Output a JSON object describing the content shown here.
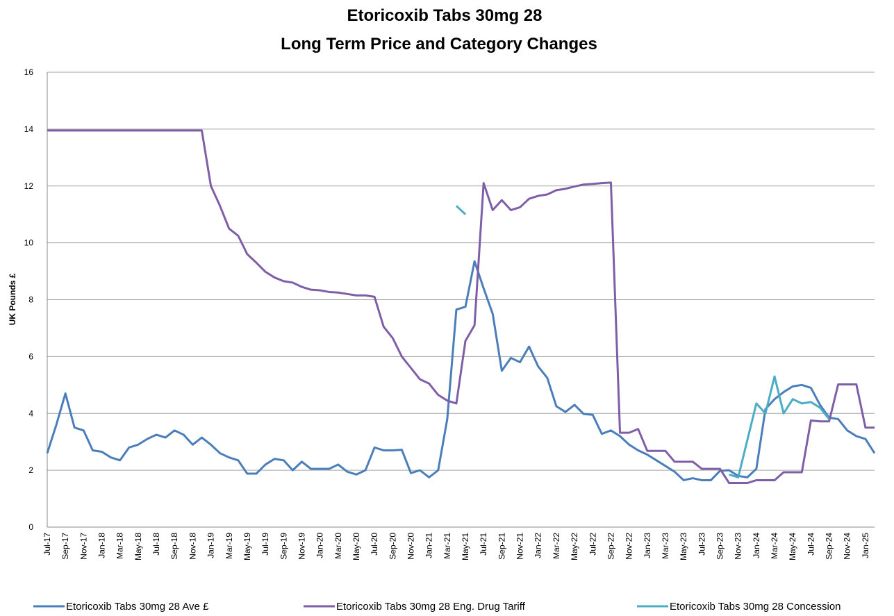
{
  "chart_data": {
    "type": "line",
    "title": "Etoricoxib Tabs 30mg 28",
    "subtitle": "Long Term Price and Category Changes",
    "y_label": "UK Pounds £",
    "categories": [
      "Jul-17",
      null,
      "Sep-17",
      null,
      "Nov-17",
      null,
      "Jan-18",
      null,
      "Mar-18",
      null,
      "May-18",
      null,
      "Jul-18",
      null,
      "Sep-18",
      null,
      "Nov-18",
      null,
      "Jan-19",
      null,
      "Mar-19",
      null,
      "May-19",
      null,
      "Jul-19",
      null,
      "Sep-19",
      null,
      "Nov-19",
      null,
      "Jan-20",
      null,
      "Mar-20",
      null,
      "May-20",
      null,
      "Jul-20",
      null,
      "Sep-20",
      null,
      "Nov-20",
      null,
      "Jan-21",
      null,
      "Mar-21",
      null,
      "May-21",
      null,
      "Jul-21",
      null,
      "Sep-21",
      null,
      "Nov-21",
      null,
      "Jan-22",
      null,
      "Mar-22",
      null,
      "May-22",
      null,
      "Jul-22",
      null,
      "Sep-22",
      null,
      "Nov-22",
      null,
      "Jan-23",
      null,
      "Mar-23",
      null,
      "May-23",
      null,
      "Jul-23",
      null,
      "Sep-23",
      null,
      "Nov-23",
      null,
      "Jan-24",
      null,
      "Mar-24",
      null,
      "May-24",
      null,
      "Jul-24",
      null,
      "Sep-24",
      null,
      "Nov-24",
      null,
      "Jan-25",
      null
    ],
    "series": [
      {
        "name": "Etoricoxib Tabs 30mg 28 Ave £",
        "color": "#4a7ebb",
        "values": [
          2.6,
          3.6,
          4.7,
          3.5,
          3.4,
          2.7,
          2.65,
          2.45,
          2.35,
          2.8,
          2.9,
          3.1,
          3.25,
          3.15,
          3.4,
          3.25,
          2.9,
          3.15,
          2.9,
          2.6,
          2.45,
          2.35,
          1.88,
          1.88,
          2.2,
          2.4,
          2.35,
          2.0,
          2.3,
          2.05,
          2.05,
          2.05,
          2.2,
          1.95,
          1.85,
          2.0,
          2.8,
          2.7,
          2.7,
          2.72,
          1.9,
          2.0,
          1.75,
          2.0,
          3.8,
          7.65,
          7.75,
          9.35,
          8.4,
          7.5,
          5.5,
          5.95,
          5.8,
          6.35,
          5.65,
          5.25,
          4.25,
          4.05,
          4.3,
          3.98,
          3.95,
          3.28,
          3.4,
          3.2,
          2.9,
          2.7,
          2.55,
          2.35,
          2.15,
          1.95,
          1.65,
          1.72,
          1.65,
          1.65,
          1.98,
          2.0,
          1.8,
          1.75,
          2.05,
          4.15,
          4.5,
          4.75,
          4.95,
          5.0,
          4.9,
          4.3,
          3.85,
          3.8,
          3.4,
          3.2,
          3.1,
          2.6
        ]
      },
      {
        "name": "Etoricoxib Tabs 30mg 28 Eng. Drug Tariff",
        "color": "#7f5ea8",
        "values": [
          13.95,
          13.95,
          13.95,
          13.95,
          13.95,
          13.95,
          13.95,
          13.95,
          13.95,
          13.95,
          13.95,
          13.95,
          13.95,
          13.95,
          13.95,
          13.95,
          13.95,
          13.95,
          12.0,
          11.3,
          10.5,
          10.25,
          9.6,
          9.3,
          8.98,
          8.78,
          8.65,
          8.6,
          8.45,
          8.35,
          8.33,
          8.27,
          8.25,
          8.2,
          8.15,
          8.15,
          8.1,
          7.05,
          6.65,
          6.0,
          5.6,
          5.2,
          5.05,
          4.65,
          4.45,
          4.35,
          6.55,
          7.1,
          12.1,
          11.15,
          11.5,
          11.15,
          11.25,
          11.55,
          11.65,
          11.7,
          11.85,
          11.9,
          11.98,
          12.05,
          12.07,
          12.1,
          12.12,
          3.32,
          3.32,
          3.45,
          2.68,
          2.68,
          2.68,
          2.3,
          2.3,
          2.3,
          2.05,
          2.05,
          2.05,
          1.55,
          1.55,
          1.55,
          1.65,
          1.65,
          1.65,
          1.93,
          1.93,
          1.93,
          3.75,
          3.72,
          3.72,
          5.02,
          5.02,
          5.02,
          3.5,
          3.5
        ]
      },
      {
        "name": "Etoricoxib Tabs 30mg 28 Concession",
        "color": "#4bacc6",
        "values": [
          null,
          null,
          null,
          null,
          null,
          null,
          null,
          null,
          null,
          null,
          null,
          null,
          null,
          null,
          null,
          null,
          null,
          null,
          null,
          null,
          null,
          null,
          null,
          null,
          null,
          null,
          null,
          null,
          null,
          null,
          null,
          null,
          null,
          null,
          null,
          null,
          null,
          null,
          null,
          null,
          null,
          null,
          null,
          null,
          null,
          11.3,
          11.0,
          null,
          null,
          null,
          null,
          null,
          null,
          null,
          null,
          null,
          null,
          null,
          null,
          null,
          null,
          null,
          null,
          null,
          null,
          null,
          null,
          null,
          null,
          null,
          null,
          null,
          null,
          null,
          null,
          1.85,
          1.75,
          3.05,
          4.35,
          4.0,
          5.3,
          4.0,
          4.5,
          4.35,
          4.4,
          4.2,
          3.8,
          null,
          null,
          null,
          null,
          null
        ]
      }
    ],
    "ylim": [
      0,
      16
    ],
    "yticks": [
      0,
      2,
      4,
      6,
      8,
      10,
      12,
      14,
      16
    ],
    "grid": true,
    "legend": "bottom"
  }
}
